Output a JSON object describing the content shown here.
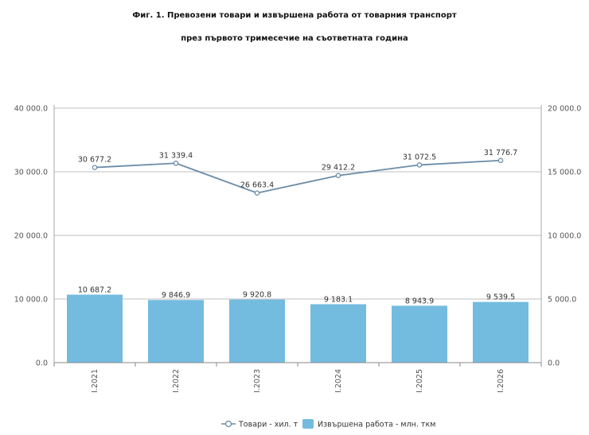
{
  "chart_data": {
    "type": "bar",
    "title": "Фиг. 1. Превозени товари и извършена работа от товарния транспорт",
    "subtitle": "през първото тримесечие на съответната година",
    "categories": [
      "I.2021",
      "I.2022",
      "I.2023",
      "I.2024",
      "I.2025",
      "I.2026"
    ],
    "series": [
      {
        "name": "Извършена работа - млн. ткм",
        "type": "bar",
        "axis": "left",
        "values": [
          10687.2,
          9846.9,
          9920.8,
          9183.1,
          8943.9,
          9539.5
        ],
        "labels": [
          "10 687.2",
          "9 846.9",
          "9 920.8",
          "9 183.1",
          "8 943.9",
          "9 539.5"
        ],
        "color": "#74bbe0"
      },
      {
        "name": "Товари - хил. т",
        "type": "line",
        "axis": "right",
        "values": [
          30677.2,
          31339.4,
          26663.4,
          29412.2,
          31072.5,
          31776.7
        ],
        "labels": [
          "30 677.2",
          "31 339.4",
          "26 663.4",
          "29 412.2",
          "31 072.5",
          "31 776.7"
        ],
        "color": "#6a8ca8"
      }
    ],
    "y_left": {
      "ylim": [
        0,
        40000
      ],
      "ticks": [
        0,
        10000,
        20000,
        30000,
        40000
      ],
      "tick_labels": [
        "0.0",
        "10 000.0",
        "20 000.0",
        "30 000.0",
        "40 000.0"
      ]
    },
    "y_right": {
      "ylim": [
        0,
        20000
      ],
      "ticks": [
        0,
        5000,
        10000,
        15000,
        20000
      ],
      "tick_labels": [
        "0.0",
        "5 000.0",
        "10 000.0",
        "15 000.0",
        "20 000.0"
      ]
    },
    "grid": true,
    "legend": "bottom-center"
  }
}
